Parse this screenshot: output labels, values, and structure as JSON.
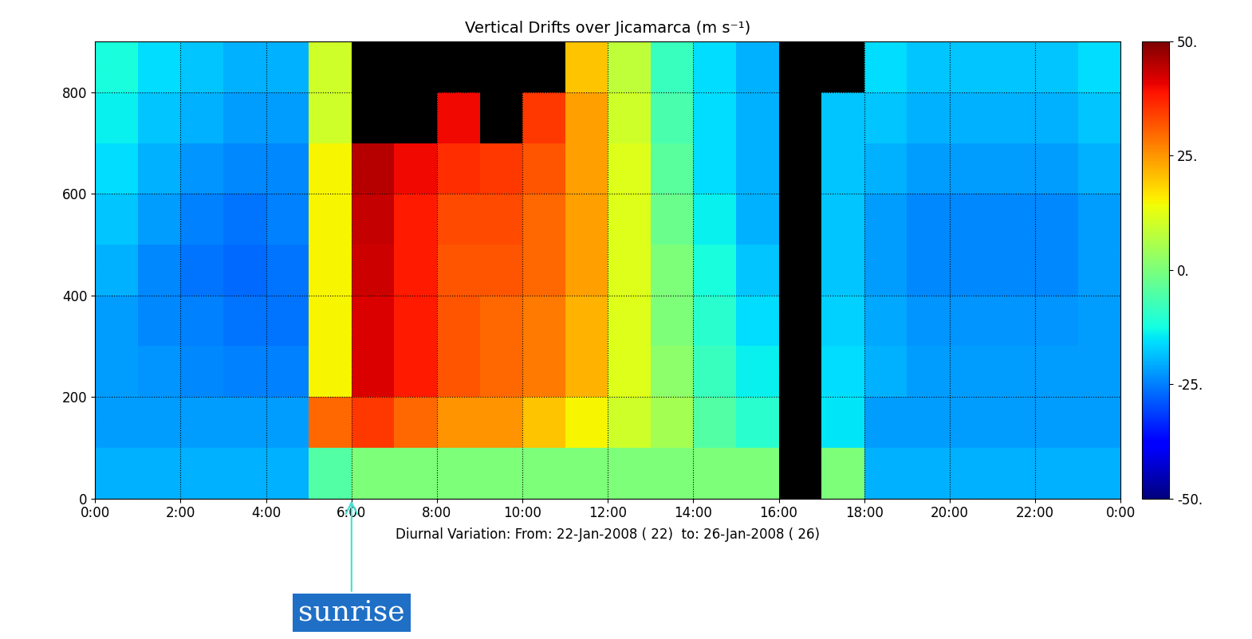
{
  "chart_data": {
    "type": "heatmap",
    "title": "Vertical Drifts over Jicamarca (m s⁻¹)",
    "x_label": "Diurnal Variation: From: 22-Jan-2008 ( 22)  to: 26-Jan-2008 ( 26)",
    "xlim": [
      0,
      24
    ],
    "xticks": [
      {
        "value": 0,
        "label": "0:00"
      },
      {
        "value": 2,
        "label": "2:00"
      },
      {
        "value": 4,
        "label": "4:00"
      },
      {
        "value": 6,
        "label": "6:00"
      },
      {
        "value": 8,
        "label": "8:00"
      },
      {
        "value": 10,
        "label": "10:00"
      },
      {
        "value": 12,
        "label": "12:00"
      },
      {
        "value": 14,
        "label": "14:00"
      },
      {
        "value": 16,
        "label": "16:00"
      },
      {
        "value": 18,
        "label": "18:00"
      },
      {
        "value": 20,
        "label": "20:00"
      },
      {
        "value": 22,
        "label": "22:00"
      },
      {
        "value": 24,
        "label": "0:00"
      }
    ],
    "ylim": [
      0,
      900
    ],
    "yticks": [
      0,
      200,
      400,
      600,
      800
    ],
    "grid": true,
    "x_edges": [
      0,
      1,
      2,
      3,
      4,
      5,
      6,
      7,
      8,
      9,
      10,
      11,
      12,
      13,
      14,
      15,
      16,
      17,
      18,
      19,
      20,
      21,
      22,
      23,
      24
    ],
    "y_edges": [
      0,
      100,
      200,
      300,
      400,
      500,
      600,
      700,
      800,
      900
    ],
    "cells": [
      [
        -20,
        -20,
        -20,
        -20,
        -20,
        -5,
        0,
        0,
        0,
        0,
        0,
        0,
        0,
        0,
        0,
        0,
        null,
        0,
        -20,
        -20,
        -20,
        -20,
        -20,
        -20
      ],
      [
        -22,
        -22,
        -22,
        -22,
        -22,
        30,
        35,
        30,
        25,
        25,
        20,
        15,
        10,
        5,
        -5,
        -10,
        null,
        -15,
        -22,
        -22,
        -22,
        -22,
        -22,
        -22
      ],
      [
        -22,
        -23,
        -24,
        -25,
        -25,
        15,
        42,
        38,
        32,
        30,
        28,
        22,
        12,
        2,
        -8,
        -14,
        null,
        -16,
        -20,
        -22,
        -22,
        -22,
        -22,
        -22
      ],
      [
        -22,
        -24,
        -25,
        -26,
        -26,
        15,
        42,
        38,
        32,
        30,
        28,
        22,
        12,
        0,
        -10,
        -16,
        null,
        -17,
        -21,
        -23,
        -23,
        -23,
        -23,
        -22
      ],
      [
        -20,
        -24,
        -26,
        -27,
        -26,
        15,
        43,
        38,
        32,
        32,
        30,
        24,
        12,
        0,
        -12,
        -18,
        null,
        -18,
        -22,
        -24,
        -24,
        -24,
        -24,
        -22
      ],
      [
        -18,
        -22,
        -25,
        -26,
        -25,
        15,
        44,
        38,
        33,
        33,
        30,
        24,
        12,
        -2,
        -14,
        -20,
        null,
        -18,
        -22,
        -24,
        -24,
        -24,
        -24,
        -22
      ],
      [
        -16,
        -20,
        -23,
        -24,
        -24,
        15,
        45,
        40,
        36,
        35,
        32,
        24,
        12,
        -4,
        -16,
        -20,
        null,
        -18,
        -20,
        -22,
        -22,
        -22,
        -22,
        -20
      ],
      [
        -14,
        -18,
        -20,
        -22,
        -22,
        10,
        null,
        null,
        40,
        null,
        35,
        24,
        10,
        -6,
        -16,
        -20,
        null,
        -18,
        -18,
        -20,
        -20,
        -20,
        -20,
        -18
      ],
      [
        -12,
        -16,
        -18,
        -20,
        -20,
        10,
        null,
        null,
        null,
        null,
        null,
        20,
        8,
        -8,
        -16,
        -20,
        null,
        null,
        -16,
        -18,
        -18,
        -18,
        -18,
        -16
      ]
    ],
    "colorbar": {
      "range": [
        -50,
        50
      ],
      "ticks": [
        {
          "value": -50,
          "label": "-50."
        },
        {
          "value": -25,
          "label": "-25."
        },
        {
          "value": 0,
          "label": "0."
        },
        {
          "value": 25,
          "label": "25."
        },
        {
          "value": 50,
          "label": "50."
        }
      ]
    },
    "annotations": [
      {
        "text": "sunrise",
        "x": 6
      }
    ]
  }
}
